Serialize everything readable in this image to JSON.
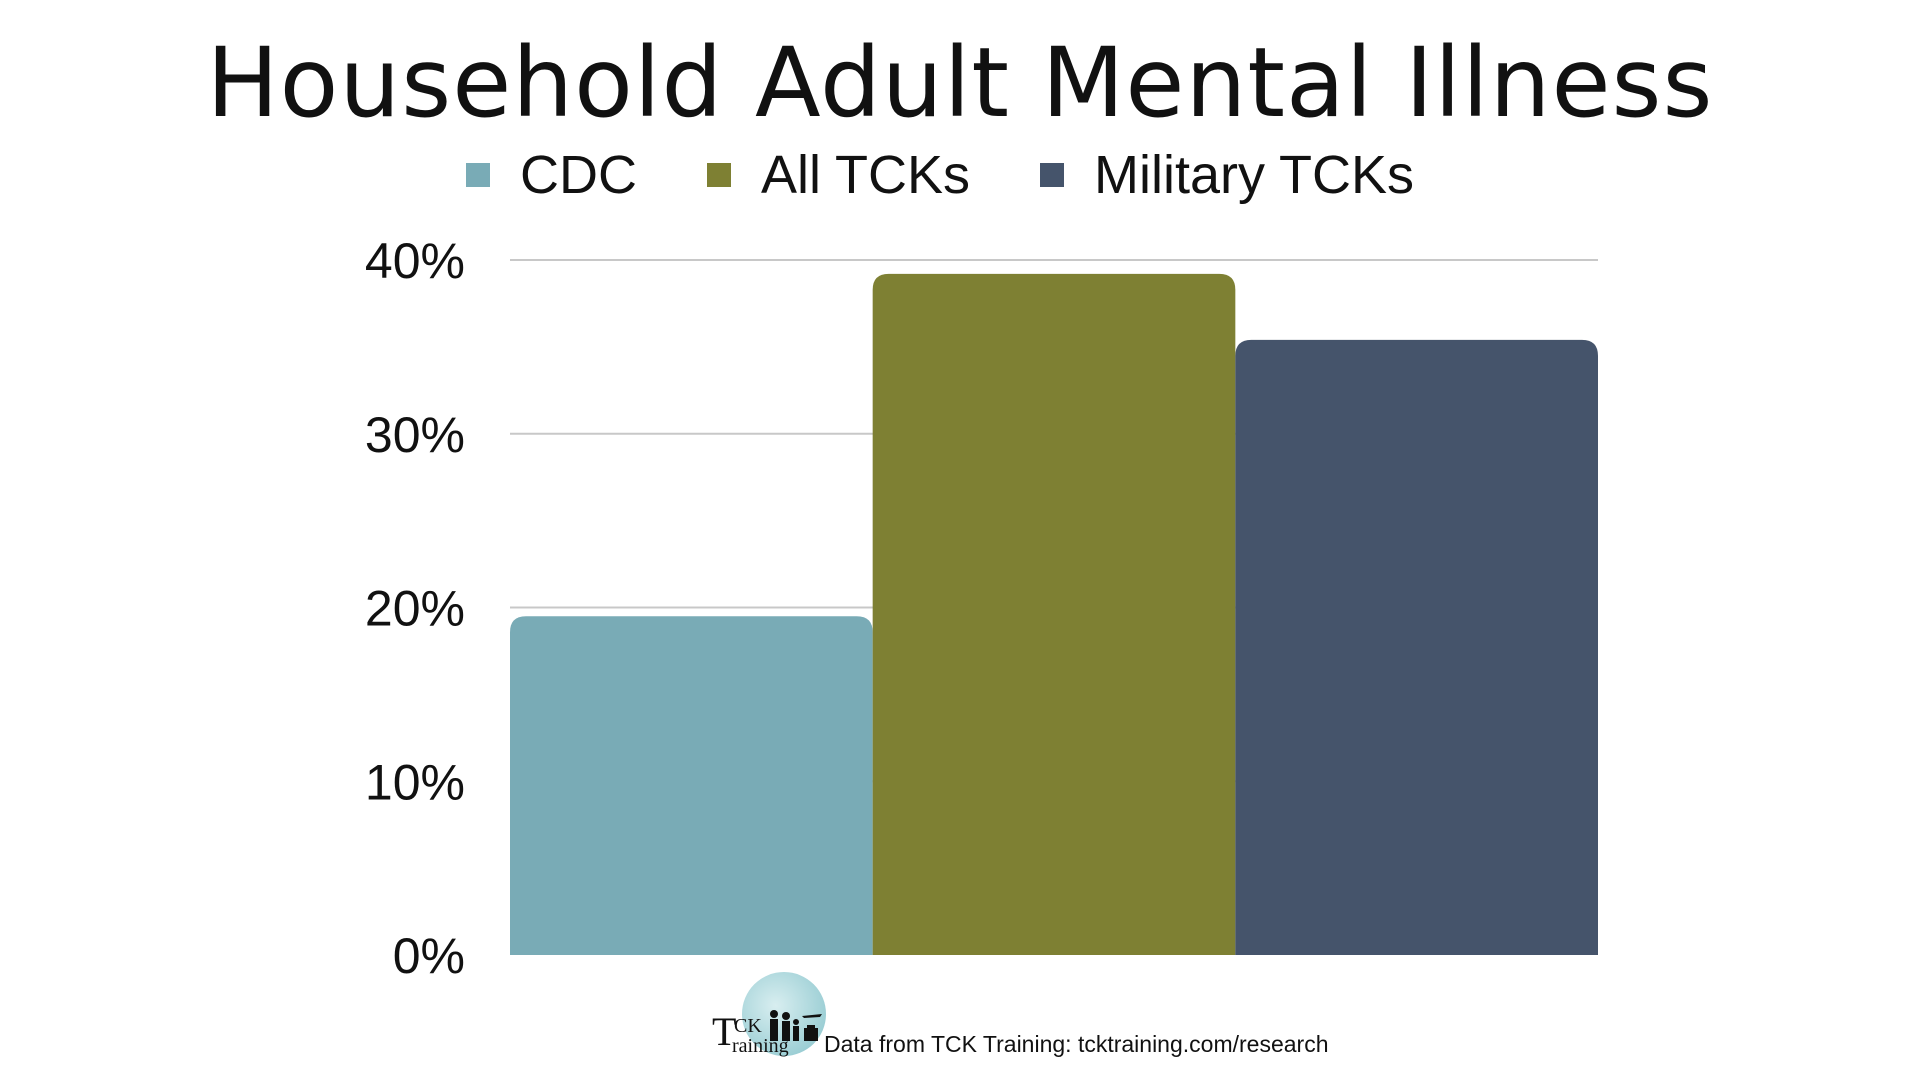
{
  "chart_data": {
    "type": "bar",
    "title": "Household Adult Mental Illness",
    "categories": [
      ""
    ],
    "series": [
      {
        "name": "CDC",
        "values": [
          19.5
        ],
        "color": "#79abb6"
      },
      {
        "name": "All TCKs",
        "values": [
          39.2
        ],
        "color": "#7e8033"
      },
      {
        "name": "Military TCKs",
        "values": [
          35.4
        ],
        "color": "#45546b"
      }
    ],
    "xlabel": "",
    "ylabel": "",
    "ylim": [
      0,
      40
    ],
    "yticks": [
      "0%",
      "10%",
      "20%",
      "30%",
      "40%"
    ],
    "y_tick_values": [
      0,
      10,
      20,
      30,
      40
    ],
    "grid": "horizontal",
    "legend_position": "top-center"
  },
  "logo": {
    "letter": "T",
    "ck": "CK",
    "raining": "raining"
  },
  "source_note": "Data from TCK Training: tcktraining.com/research",
  "colors": {
    "grid": "#c8c8c8",
    "text": "#111111"
  }
}
